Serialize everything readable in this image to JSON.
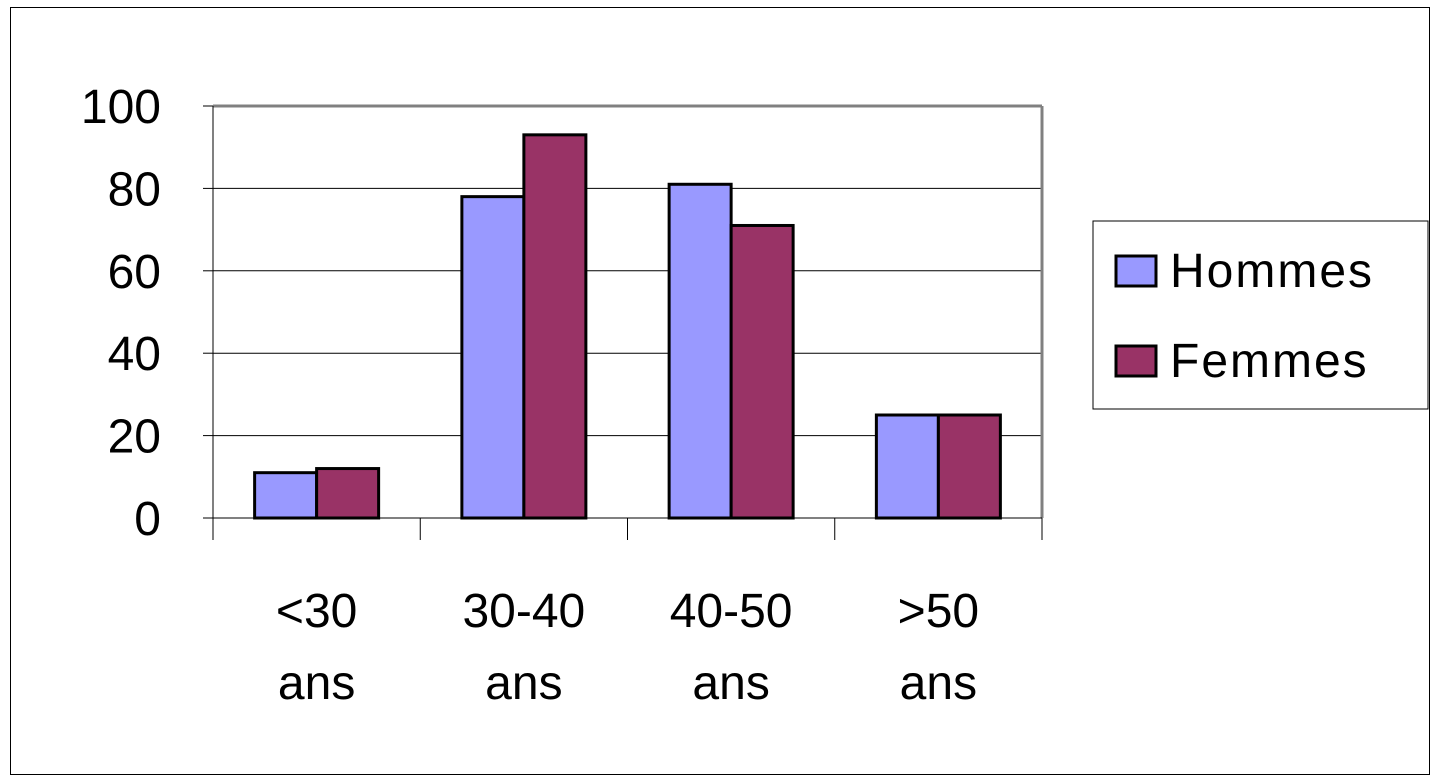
{
  "chart_data": {
    "type": "bar",
    "categories": [
      [
        "<30",
        "ans"
      ],
      [
        "30-40",
        "ans"
      ],
      [
        "40-50",
        "ans"
      ],
      [
        ">50",
        "ans"
      ]
    ],
    "series": [
      {
        "name": "Hommes",
        "values": [
          11,
          78,
          81,
          25
        ],
        "color": "#9999ff"
      },
      {
        "name": "Femmes",
        "values": [
          12,
          93,
          71,
          25
        ],
        "color": "#993366"
      }
    ],
    "ylim": [
      0,
      100
    ],
    "yticks": [
      "0",
      "20",
      "40",
      "60",
      "80",
      "100"
    ],
    "grid": true,
    "legend": "right"
  }
}
